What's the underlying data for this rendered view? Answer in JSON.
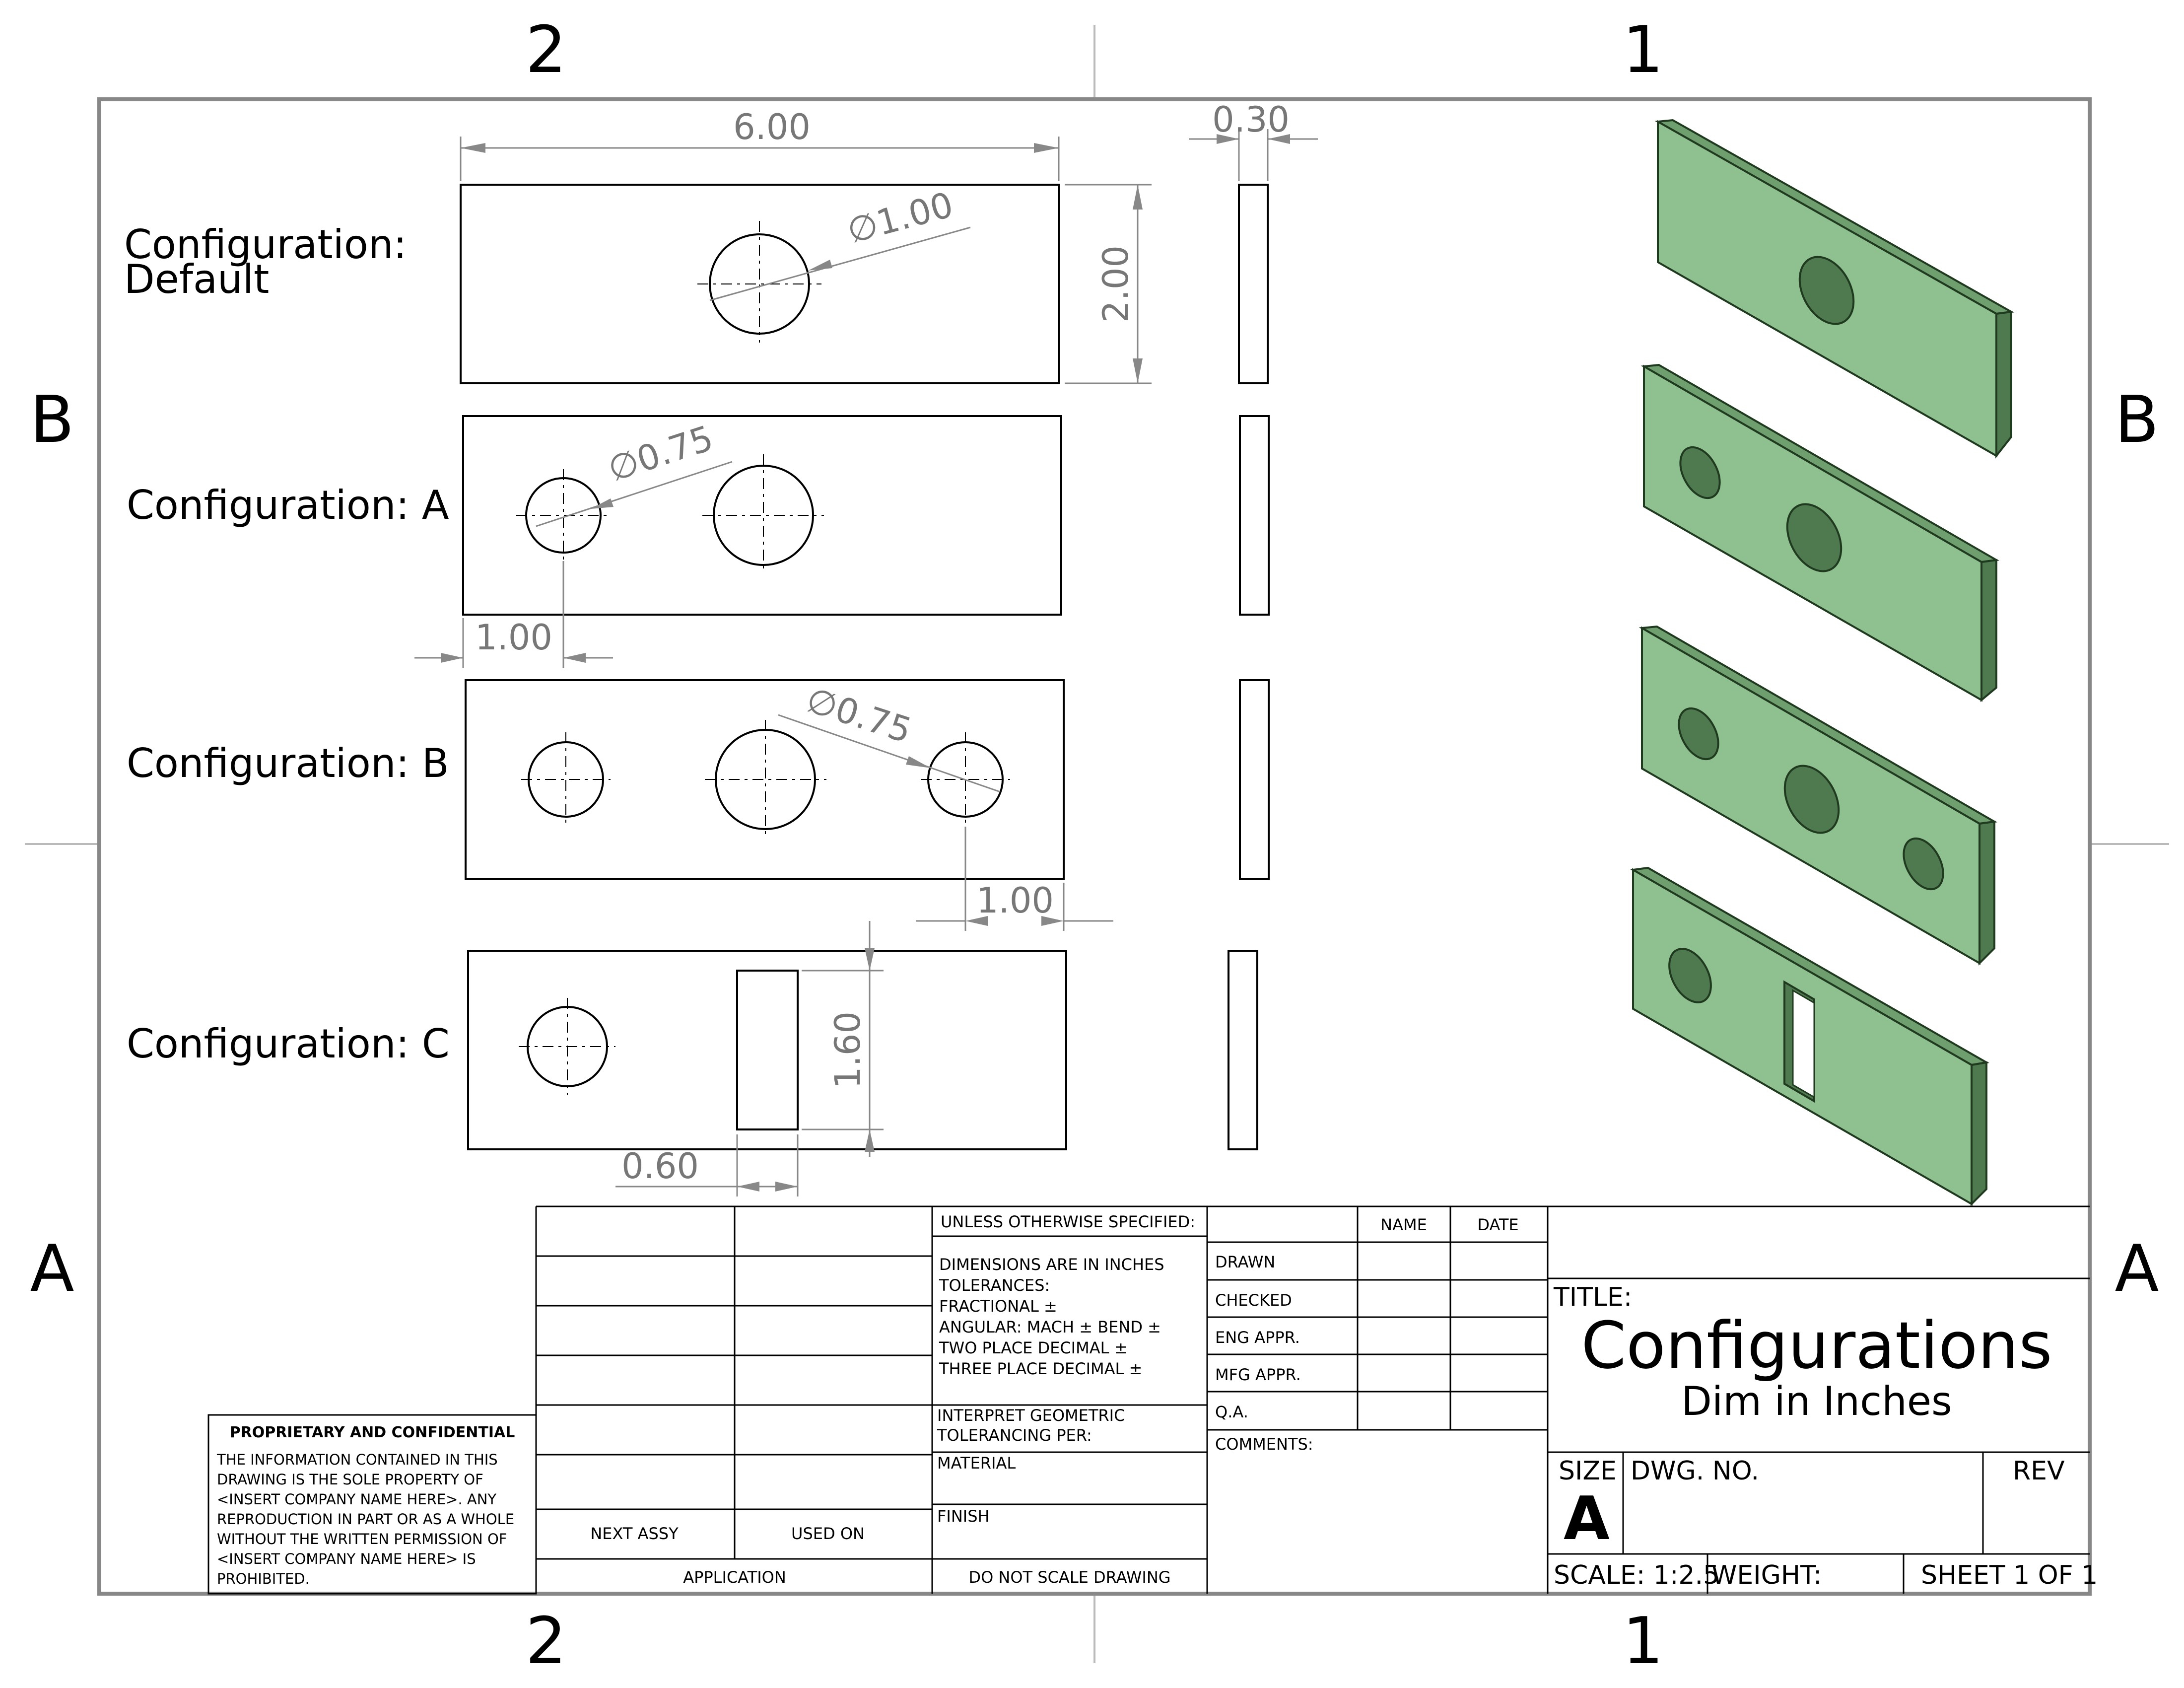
{
  "zones": {
    "top_left": "2",
    "top_right": "1",
    "bottom_left": "2",
    "bottom_right": "1",
    "left_upper": "B",
    "left_lower": "A",
    "right_upper": "B",
    "right_lower": "A"
  },
  "configurations": {
    "default_line1": "Configuration:",
    "default_line2": "Default",
    "a": "Configuration: A",
    "b": "Configuration: B",
    "c": "Configuration: C"
  },
  "dimensions": {
    "length": "6.00",
    "thickness": "0.30",
    "height": "2.00",
    "default_hole_dia": "1.00",
    "a_hole_dia": "0.75",
    "a_offset": "1.00",
    "b_hole_dia": "0.75",
    "b_offset": "1.00",
    "c_slot_height": "1.60",
    "c_slot_width": "0.60",
    "dia_symbol": "∅"
  },
  "title_block": {
    "unless": "UNLESS OTHERWISE SPECIFIED:",
    "dims_inches": "DIMENSIONS ARE IN INCHES",
    "tolerances": "TOLERANCES:",
    "fractional": "FRACTIONAL ±",
    "angular": "ANGULAR: MACH ±     BEND ±",
    "two_place": "TWO PLACE DECIMAL     ±",
    "three_place": "THREE PLACE DECIMAL    ±",
    "interpret1": "INTERPRET GEOMETRIC",
    "interpret2": "TOLERANCING PER:",
    "material": "MATERIAL",
    "finish": "FINISH",
    "do_not_scale": "DO NOT SCALE DRAWING",
    "next_assy": "NEXT ASSY",
    "used_on": "USED ON",
    "application": "APPLICATION",
    "name": "NAME",
    "date": "DATE",
    "drawn": "DRAWN",
    "checked": "CHECKED",
    "eng_appr": "ENG APPR.",
    "mfg_appr": "MFG APPR.",
    "qa": "Q.A.",
    "comments": "COMMENTS:",
    "title_label": "TITLE:",
    "title": "Configurations",
    "subtitle": "Dim in Inches",
    "size_label": "SIZE",
    "size": "A",
    "dwg_no": "DWG.  NO.",
    "rev": "REV",
    "scale": "SCALE: 1:2.5",
    "weight": "WEIGHT:",
    "sheet": "SHEET 1 OF 1",
    "proprietary_title": "PROPRIETARY AND CONFIDENTIAL",
    "prop_l1": "THE INFORMATION CONTAINED IN THIS",
    "prop_l2": "DRAWING IS THE SOLE PROPERTY OF",
    "prop_l3": "<INSERT COMPANY NAME HERE>.  ANY",
    "prop_l4": "REPRODUCTION IN PART OR AS A WHOLE",
    "prop_l5": "WITHOUT THE WRITTEN PERMISSION OF",
    "prop_l6": "<INSERT COMPANY NAME HERE> IS",
    "prop_l7": "PROHIBITED."
  }
}
